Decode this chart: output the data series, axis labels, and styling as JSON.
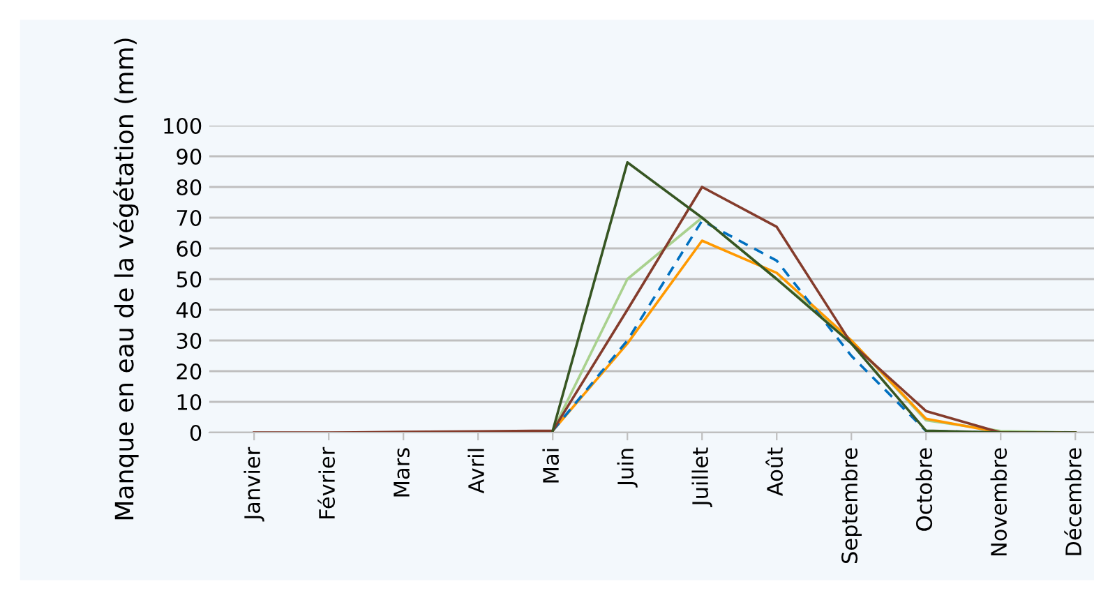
{
  "chart_data": {
    "type": "line",
    "ylabel": "Manque en eau de la végétation (mm)",
    "categories": [
      "Janvier",
      "Février",
      "Mars",
      "Avril",
      "Mai",
      "Juin",
      "Juillet",
      "Août",
      "Septembre",
      "Octobre",
      "Novembre",
      "Décembre"
    ],
    "series": [
      {
        "color": "#a9d18e",
        "values": [
          null,
          null,
          null,
          null,
          0.6,
          50,
          70,
          50,
          30,
          4,
          0.5,
          0
        ]
      },
      {
        "color": "#ff9900",
        "values": [
          null,
          null,
          null,
          null,
          0.6,
          29,
          62.5,
          52,
          30,
          4.5,
          0,
          0
        ]
      },
      {
        "color": "#0070c0",
        "line_style": "dashed",
        "values": [
          null,
          null,
          null,
          null,
          0.6,
          30,
          69,
          56,
          25,
          0.5,
          0,
          0
        ]
      },
      {
        "color": "#843c2c",
        "values": [
          0,
          0,
          0.2,
          0.4,
          0.6,
          40,
          80,
          67,
          29,
          7,
          0,
          0
        ]
      },
      {
        "color": "#375623",
        "values": [
          null,
          null,
          null,
          null,
          0.6,
          88,
          70,
          50,
          29,
          0.6,
          0,
          0
        ]
      }
    ],
    "ylim": [
      0,
      100
    ],
    "yticks": [
      0,
      10,
      20,
      30,
      40,
      50,
      60,
      70,
      80,
      90,
      100
    ],
    "grid": "y",
    "legend": false,
    "marker": "none",
    "line_style": "solid"
  }
}
